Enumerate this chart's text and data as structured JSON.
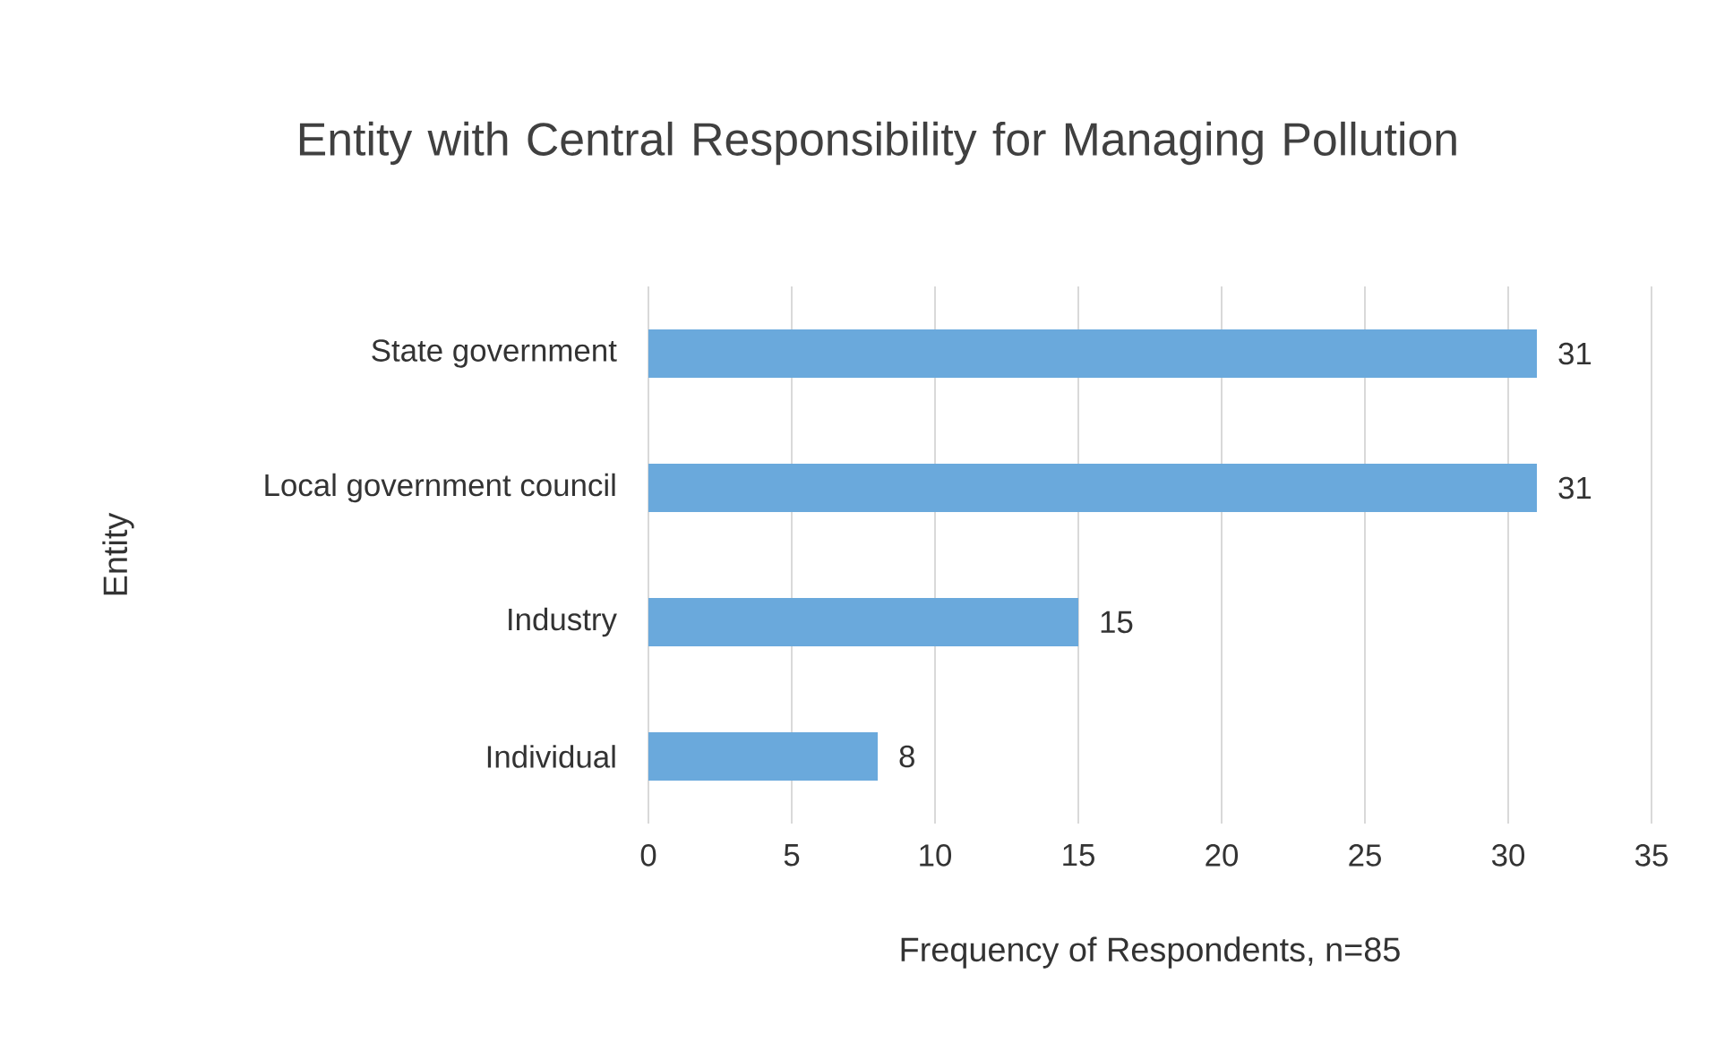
{
  "chart_data": {
    "type": "bar",
    "orientation": "horizontal",
    "title": "Entity with Central Responsibility for Managing Pollution",
    "xlabel": "Frequency of Respondents, n=85",
    "ylabel": "Entity",
    "categories": [
      "State government",
      "Local government council",
      "Industry",
      "Individual"
    ],
    "values": [
      31,
      31,
      15,
      8
    ],
    "color": "#6aa9dc",
    "xlim": [
      0,
      35
    ],
    "xticks": [
      0,
      5,
      10,
      15,
      20,
      25,
      30,
      35
    ],
    "grid": "x",
    "data_labels": true
  }
}
